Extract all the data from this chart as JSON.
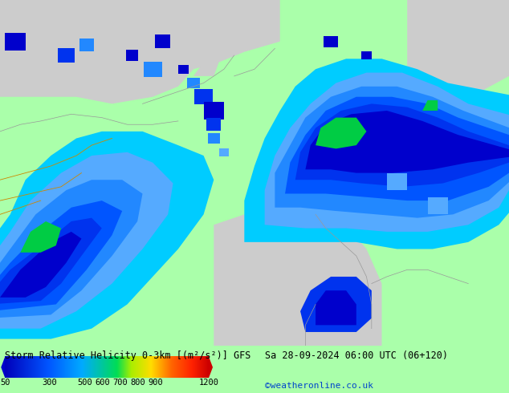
{
  "title_left": "Storm Relative Helicity 0-3km [(m²/s²)] GFS",
  "title_right": "Sa 28-09-2024 06:00 UTC (06+120)",
  "credit": "©weatheronline.co.uk",
  "bg_color": "#aaffaa",
  "land_color": "#cccccc",
  "fig_width": 6.34,
  "fig_height": 4.9,
  "dpi": 100,
  "colorbar_stops": [
    [
      0.0,
      "#0000bb"
    ],
    [
      0.21,
      "#0055ff"
    ],
    [
      0.38,
      "#00aaff"
    ],
    [
      0.55,
      "#00dd55"
    ],
    [
      0.62,
      "#aaee00"
    ],
    [
      0.72,
      "#ffdd00"
    ],
    [
      0.82,
      "#ff6600"
    ],
    [
      0.92,
      "#ff2200"
    ],
    [
      1.0,
      "#cc0000"
    ]
  ],
  "cb_tick_vals": [
    50,
    300,
    500,
    600,
    700,
    800,
    900,
    1200
  ],
  "cb_range": [
    50,
    1200
  ]
}
